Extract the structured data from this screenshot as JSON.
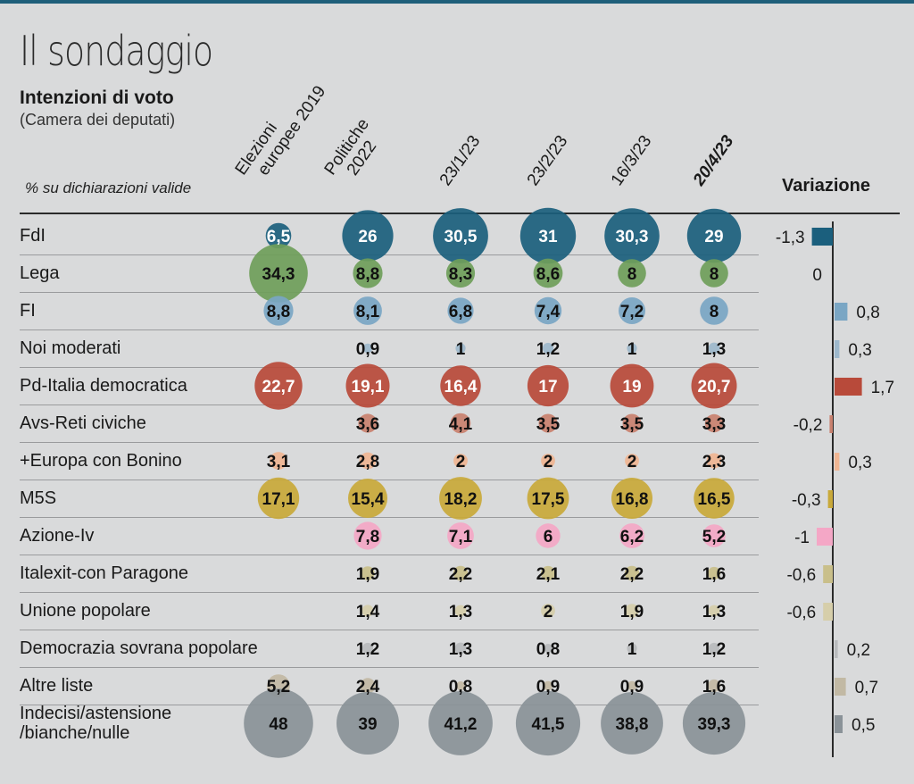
{
  "header": {
    "title": "Il sondaggio",
    "subtitle": "Intenzioni di voto",
    "subnote": "(Camera dei deputati)",
    "unit_label": "% su dichiarazioni valide",
    "variation_label": "Variazione"
  },
  "chart_data": {
    "type": "table",
    "title": "Il sondaggio",
    "subtitle": "Intenzioni di voto (Camera dei deputati)",
    "unit": "% su dichiarazioni valide",
    "columns": [
      {
        "label": "Elezioni\neuropee 2019",
        "lines": [
          "Elezioni",
          "europee 2019"
        ],
        "bold": false
      },
      {
        "label": "Politiche\n2022",
        "lines": [
          "Politiche",
          "2022"
        ],
        "bold": false
      },
      {
        "label": "23/1/23",
        "lines": [
          "23/1/23"
        ],
        "bold": false
      },
      {
        "label": "23/2/23",
        "lines": [
          "23/2/23"
        ],
        "bold": false
      },
      {
        "label": "16/3/23",
        "lines": [
          "16/3/23"
        ],
        "bold": false
      },
      {
        "label": "20/4/23",
        "lines": [
          "20/4/23"
        ],
        "bold": true
      }
    ],
    "rows": [
      {
        "party": "FdI",
        "color": "#1b5f7d",
        "light_text": true,
        "values": [
          6.5,
          26,
          30.5,
          31,
          30.3,
          29
        ],
        "labels": [
          "6,5",
          "26",
          "30,5",
          "31",
          "30,3",
          "29"
        ],
        "variation": -1.3,
        "variation_label": "-1,3"
      },
      {
        "party": "Lega",
        "color": "#6f9e5a",
        "light_text": false,
        "values": [
          34.3,
          8.8,
          8.3,
          8.6,
          8,
          8
        ],
        "labels": [
          "34,3",
          "8,8",
          "8,3",
          "8,6",
          "8",
          "8"
        ],
        "variation": 0,
        "variation_label": "0"
      },
      {
        "party": "FI",
        "color": "#7aa6c4",
        "light_text": false,
        "values": [
          8.8,
          8.1,
          6.8,
          7.4,
          7.2,
          8
        ],
        "labels": [
          "8,8",
          "8,1",
          "6,8",
          "7,4",
          "7,2",
          "8"
        ],
        "variation": 0.8,
        "variation_label": "0,8"
      },
      {
        "party": "Noi moderati",
        "color": "#9db8cc",
        "light_text": false,
        "values": [
          null,
          0.9,
          1,
          1.2,
          1,
          1.3
        ],
        "labels": [
          "",
          "0,9",
          "1",
          "1,2",
          "1",
          "1,3"
        ],
        "variation": 0.3,
        "variation_label": "0,3"
      },
      {
        "party": "Pd-Italia democratica",
        "color": "#b84a3a",
        "light_text": true,
        "values": [
          22.7,
          19.1,
          16.4,
          17,
          19,
          20.7
        ],
        "labels": [
          "22,7",
          "19,1",
          "16,4",
          "17",
          "19",
          "20,7"
        ],
        "variation": 1.7,
        "variation_label": "1,7"
      },
      {
        "party": "Avs-Reti civiche",
        "color": "#c9816f",
        "light_text": false,
        "values": [
          null,
          3.6,
          4.1,
          3.5,
          3.5,
          3.3
        ],
        "labels": [
          "",
          "3,6",
          "4,1",
          "3,5",
          "3,5",
          "3,3"
        ],
        "variation": -0.2,
        "variation_label": "-0,2"
      },
      {
        "party": "+Europa con Bonino",
        "color": "#f0b592",
        "light_text": false,
        "values": [
          3.1,
          2.8,
          2,
          2,
          2,
          2.3
        ],
        "labels": [
          "3,1",
          "2,8",
          "2",
          "2",
          "2",
          "2,3"
        ],
        "variation": 0.3,
        "variation_label": "0,3"
      },
      {
        "party": "M5S",
        "color": "#c9a93a",
        "light_text": false,
        "values": [
          17.1,
          15.4,
          18.2,
          17.5,
          16.8,
          16.5
        ],
        "labels": [
          "17,1",
          "15,4",
          "18,2",
          "17,5",
          "16,8",
          "16,5"
        ],
        "variation": -0.3,
        "variation_label": "-0,3"
      },
      {
        "party": "Azione-Iv",
        "color": "#f4a7c6",
        "light_text": false,
        "values": [
          null,
          7.8,
          7.1,
          6,
          6.2,
          5.2
        ],
        "labels": [
          "",
          "7,8",
          "7,1",
          "6",
          "6,2",
          "5,2"
        ],
        "variation": -1,
        "variation_label": "-1"
      },
      {
        "party": "Italexit-con Paragone",
        "color": "#c9bf8a",
        "light_text": false,
        "values": [
          null,
          1.9,
          2.2,
          2.1,
          2.2,
          1.6
        ],
        "labels": [
          "",
          "1,9",
          "2,2",
          "2,1",
          "2,2",
          "1,6"
        ],
        "variation": -0.6,
        "variation_label": "-0,6"
      },
      {
        "party": "Unione popolare",
        "color": "#d6ceaa",
        "light_text": false,
        "values": [
          null,
          1.4,
          1.3,
          2,
          1.9,
          1.3
        ],
        "labels": [
          "",
          "1,4",
          "1,3",
          "2",
          "1,9",
          "1,3"
        ],
        "variation": -0.6,
        "variation_label": "-0,6"
      },
      {
        "party": "Democrazia sovrana popolare",
        "color": "#b9bbbd",
        "light_text": false,
        "values": [
          null,
          1.2,
          1.3,
          0.8,
          1,
          1.2
        ],
        "labels": [
          "",
          "1,2",
          "1,3",
          "0,8",
          "1",
          "1,2"
        ],
        "variation": 0.2,
        "variation_label": "0,2"
      },
      {
        "party": "Altre liste",
        "color": "#c2b9a4",
        "light_text": false,
        "values": [
          5.2,
          2.4,
          0.8,
          0.9,
          0.9,
          1.6
        ],
        "labels": [
          "5,2",
          "2,4",
          "0,8",
          "0,9",
          "0,9",
          "1,6"
        ],
        "variation": 0.7,
        "variation_label": "0,7"
      },
      {
        "party": "Indecisi/astensione\n/bianche/nulle",
        "lines": [
          "Indecisi/astensione",
          "/bianche/nulle"
        ],
        "color": "#8a9298",
        "light_text": false,
        "values": [
          48,
          39,
          41.2,
          41.5,
          38.8,
          39.3
        ],
        "labels": [
          "48",
          "39",
          "41,2",
          "41,5",
          "38,8",
          "39,3"
        ],
        "variation": 0.5,
        "variation_label": "0,5"
      }
    ]
  }
}
